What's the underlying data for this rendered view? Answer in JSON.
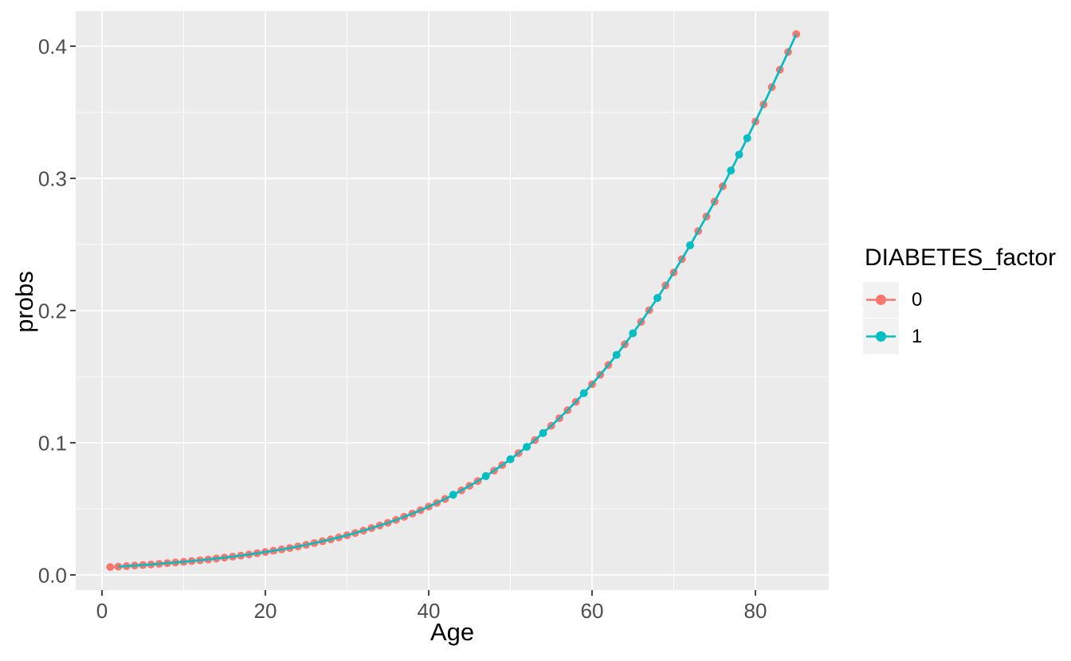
{
  "figure": {
    "background": "#FFFFFF",
    "panel_background": "#EBEBEB",
    "grid_color": "#FFFFFF",
    "tick_mark_color": "#333333",
    "tick_label_color": "#4D4D4D",
    "axis_title_color": "#000000",
    "legend_key_background": "#F2F2F2"
  },
  "chart_data": {
    "type": "scatter",
    "title": "",
    "xlabel": "Age",
    "ylabel": "probs",
    "xlim": [
      -3.22,
      88.98
    ],
    "ylim": [
      -0.0115,
      0.4265
    ],
    "grid": "major+minor",
    "x_major_ticks": [
      0,
      20,
      40,
      60,
      80
    ],
    "x_tick_labels": [
      "0",
      "20",
      "40",
      "60",
      "80"
    ],
    "x_minor_ticks": [
      10,
      30,
      50,
      70
    ],
    "y_major_ticks": [
      0.0,
      0.1,
      0.2,
      0.3,
      0.4
    ],
    "y_tick_labels": [
      "0.0",
      "0.1",
      "0.2",
      "0.3",
      "0.4"
    ],
    "y_minor_ticks": [
      0.05,
      0.15,
      0.25,
      0.35
    ],
    "legend": {
      "title": "DIABETES_factor",
      "position": "right",
      "entries": [
        {
          "label": "0",
          "color": "#F8766D"
        },
        {
          "label": "1",
          "color": "#00BFC4"
        }
      ]
    },
    "series": [
      {
        "name": "0",
        "color": "#F8766D",
        "marker": "circle",
        "x": [
          1,
          2,
          3,
          4,
          5,
          6,
          7,
          8,
          9,
          10,
          11,
          12,
          13,
          14,
          15,
          16,
          17,
          18,
          19,
          20,
          21,
          22,
          23,
          24,
          25,
          26,
          27,
          28,
          29,
          30,
          31,
          32,
          33,
          34,
          35,
          36,
          37,
          38,
          39,
          40,
          41,
          42,
          43,
          44,
          45,
          46,
          47,
          48,
          49,
          50,
          51,
          52,
          53,
          54,
          55,
          56,
          57,
          58,
          59,
          60,
          61,
          62,
          63,
          64,
          65,
          66,
          67,
          68,
          69,
          70,
          71,
          72,
          73,
          74,
          75,
          76,
          77,
          78,
          79,
          80,
          81,
          82,
          83,
          84,
          85
        ],
        "y": [
          0.006,
          0.0063,
          0.0067,
          0.0071,
          0.0075,
          0.0079,
          0.0084,
          0.0089,
          0.0094,
          0.0099,
          0.0105,
          0.0111,
          0.0117,
          0.0124,
          0.0131,
          0.0138,
          0.0146,
          0.0155,
          0.0164,
          0.0173,
          0.0183,
          0.0193,
          0.0204,
          0.0216,
          0.0228,
          0.0241,
          0.0255,
          0.0269,
          0.0284,
          0.03,
          0.0317,
          0.0335,
          0.0354,
          0.0374,
          0.0394,
          0.0416,
          0.044,
          0.0464,
          0.049,
          0.0517,
          0.0545,
          0.0575,
          0.0606,
          0.0639,
          0.0674,
          0.071,
          0.0748,
          0.0789,
          0.0831,
          0.0875,
          0.0921,
          0.0969,
          0.102,
          0.1073,
          0.1128,
          0.1186,
          0.1246,
          0.1309,
          0.1375,
          0.1443,
          0.1514,
          0.1588,
          0.1665,
          0.1745,
          0.1828,
          0.1914,
          0.2003,
          0.2095,
          0.219,
          0.2288,
          0.2389,
          0.2494,
          0.2601,
          0.2711,
          0.2824,
          0.294,
          0.3059,
          0.318,
          0.3304,
          0.343,
          0.3559,
          0.369,
          0.3822,
          0.3956,
          0.4091
        ]
      },
      {
        "name": "1",
        "color": "#00BFC4",
        "marker": "circle",
        "line_x": [
          2,
          3,
          4,
          5,
          6,
          7,
          8,
          9,
          10,
          11,
          12,
          13,
          14,
          15,
          16,
          17,
          18,
          19,
          20,
          21,
          22,
          23,
          24,
          25,
          26,
          27,
          28,
          29,
          30,
          31,
          32,
          33,
          34,
          35,
          36,
          37,
          38,
          39,
          40,
          41,
          42,
          43,
          44,
          45,
          46,
          47,
          48,
          49,
          50,
          51,
          52,
          53,
          54,
          55,
          56,
          57,
          58,
          59,
          60,
          61,
          62,
          63,
          64,
          65,
          66,
          67,
          68,
          69,
          70,
          71,
          72,
          73,
          74,
          75,
          76,
          77,
          78,
          79,
          80,
          81,
          82,
          83,
          84,
          85
        ],
        "line_y": [
          0.0063,
          0.0067,
          0.0071,
          0.0075,
          0.0079,
          0.0084,
          0.0089,
          0.0094,
          0.0099,
          0.0105,
          0.0111,
          0.0117,
          0.0124,
          0.0131,
          0.0138,
          0.0146,
          0.0155,
          0.0164,
          0.0173,
          0.0183,
          0.0193,
          0.0204,
          0.0216,
          0.0228,
          0.0241,
          0.0255,
          0.0269,
          0.0284,
          0.03,
          0.0317,
          0.0335,
          0.0354,
          0.0374,
          0.0394,
          0.0416,
          0.044,
          0.0464,
          0.049,
          0.0517,
          0.0545,
          0.0575,
          0.0606,
          0.0639,
          0.0674,
          0.071,
          0.0748,
          0.0789,
          0.0831,
          0.0875,
          0.0921,
          0.0969,
          0.102,
          0.1073,
          0.1128,
          0.1186,
          0.1246,
          0.1309,
          0.1375,
          0.1443,
          0.1514,
          0.1588,
          0.1665,
          0.1745,
          0.1828,
          0.1914,
          0.2003,
          0.2095,
          0.219,
          0.2288,
          0.2389,
          0.2494,
          0.2601,
          0.2711,
          0.2824,
          0.294,
          0.3059,
          0.318,
          0.3304,
          0.343,
          0.3559,
          0.369,
          0.3822,
          0.3956,
          0.4091
        ],
        "point_x": [
          43,
          47,
          50,
          52,
          54,
          59,
          63,
          65,
          68,
          72,
          77,
          78,
          79
        ],
        "point_y": [
          0.0606,
          0.0748,
          0.0875,
          0.0969,
          0.1073,
          0.1375,
          0.1665,
          0.1828,
          0.2095,
          0.2494,
          0.3059,
          0.318,
          0.3304
        ]
      }
    ]
  }
}
